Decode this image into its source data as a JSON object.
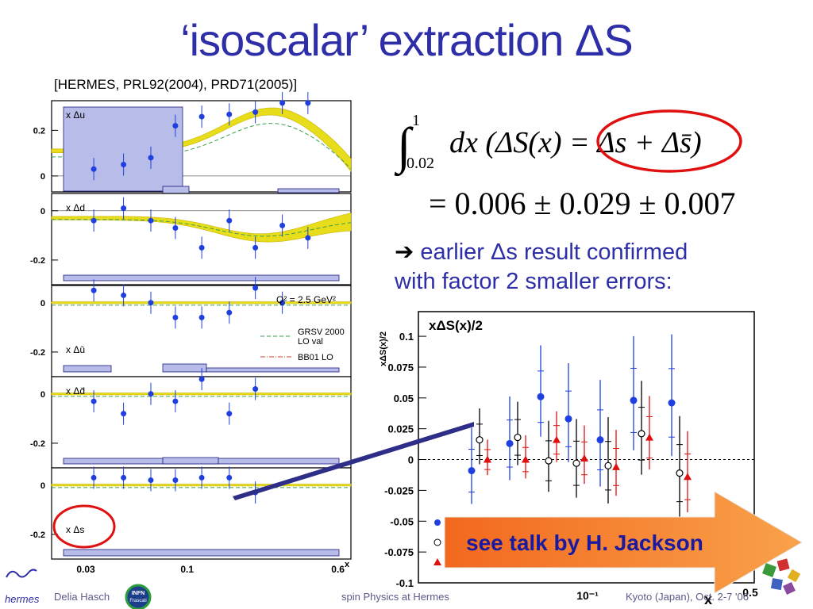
{
  "title": "‘isoscalar’ extraction ΔS",
  "reference": "[HERMES, PRL92(2004), PRD71(2005)]",
  "equation": {
    "integral_upper": "1",
    "integral_lower": "0.02",
    "integrand": "dx (ΔS(x) = Δs + Δs̄)",
    "result": "= 0.006 ± 0.029 ± 0.007"
  },
  "bullet": {
    "arrow": "➔",
    "line1": "earlier Δs result confirmed",
    "line2": "with factor 2 smaller errors:"
  },
  "callout": "see talk by H. Jackson",
  "footer": {
    "author": "Delia Hasch",
    "talk": "spin Physics at Hermes",
    "place": "Kyoto (Japan), Oct. 2-7 '06",
    "hermes_logo": "hermes",
    "infn_logo_1": "INFN",
    "infn_logo_2": "Frascati"
  },
  "colors": {
    "title": "#2e2ea8",
    "points": "#1f3fe0",
    "band": "#e8dd1a",
    "callout_start": "#f2681e",
    "callout_end": "#f9a24a",
    "circle": "#e01010"
  },
  "chart_data": [
    {
      "type": "scatter",
      "title": "",
      "xlabel": "x",
      "x_scale": "log",
      "x_ticks": [
        "0.03",
        "0.1",
        "0.6"
      ],
      "legend": {
        "q2": "Q² = 2.5 GeV²",
        "grsv1": "GRSV 2000",
        "grsv2": "LO val",
        "bb01": "BB01 LO"
      },
      "panels": [
        {
          "name": "x Δu",
          "ylim": [
            -0.07,
            0.33
          ],
          "yticks": [
            "0.2",
            "0"
          ],
          "x": [
            0.033,
            0.047,
            0.065,
            0.087,
            0.119,
            0.165,
            0.225,
            0.31,
            0.42
          ],
          "values": [
            0.03,
            0.05,
            0.08,
            0.22,
            0.26,
            0.27,
            0.28,
            0.32,
            0.32
          ]
        },
        {
          "name": "x Δd",
          "ylim": [
            -0.3,
            0.07
          ],
          "yticks": [
            "0",
            "-0.2"
          ],
          "x": [
            0.033,
            0.047,
            0.065,
            0.087,
            0.119,
            0.165,
            0.225,
            0.31,
            0.42
          ],
          "values": [
            -0.04,
            0.01,
            -0.04,
            -0.07,
            -0.15,
            -0.04,
            -0.15,
            -0.06,
            -0.11
          ]
        },
        {
          "name": "x Δū",
          "ylim": [
            -0.3,
            0.07
          ],
          "yticks": [
            "0",
            "-0.2"
          ],
          "x": [
            0.033,
            0.047,
            0.065,
            0.087,
            0.119,
            0.165,
            0.225,
            0.31
          ],
          "values": [
            0.05,
            0.03,
            0.0,
            -0.06,
            -0.06,
            -0.04,
            0.06,
            0.0
          ]
        },
        {
          "name": "x Δd̄",
          "ylim": [
            -0.3,
            0.07
          ],
          "yticks": [
            "0",
            "-0.2"
          ],
          "x": [
            0.033,
            0.047,
            0.065,
            0.087,
            0.119,
            0.165,
            0.225
          ],
          "values": [
            -0.03,
            -0.08,
            0.0,
            -0.03,
            0.06,
            -0.08,
            0.02
          ]
        },
        {
          "name": "x Δs",
          "ylim": [
            -0.3,
            0.07
          ],
          "yticks": [
            "0",
            "-0.2"
          ],
          "x": [
            0.033,
            0.047,
            0.065,
            0.087,
            0.119,
            0.165,
            0.225
          ],
          "values": [
            0.03,
            0.03,
            0.02,
            0.02,
            0.03,
            0.03,
            -0.03
          ]
        }
      ]
    },
    {
      "type": "scatter",
      "title": "xΔS(x)/2",
      "ylabel": "xΔS(x)/2",
      "xlabel": "x",
      "x_ticks": [
        "10⁻¹",
        "0.5"
      ],
      "ylim": [
        -0.1,
        0.12
      ],
      "yticks": [
        "0.1",
        "0.075",
        "0.05",
        "0.025",
        "0",
        "-0.025",
        "-0.05",
        "-0.075",
        "-0.1"
      ],
      "series": [
        {
          "name": "",
          "marker": "circle-filled",
          "color": "#1f3fe0",
          "values": [
            -0.009,
            0.013,
            0.051,
            0.033,
            0.016,
            0.048,
            0.046
          ]
        },
        {
          "name": "",
          "marker": "circle-open",
          "color": "#000000",
          "values": [
            0.016,
            0.018,
            -0.001,
            -0.003,
            -0.005,
            0.021,
            -0.011
          ]
        },
        {
          "name": "",
          "marker": "triangle",
          "color": "#e01010",
          "values": [
            0.0,
            0.0,
            0.016,
            0.001,
            -0.006,
            0.018,
            -0.014
          ]
        }
      ]
    }
  ]
}
